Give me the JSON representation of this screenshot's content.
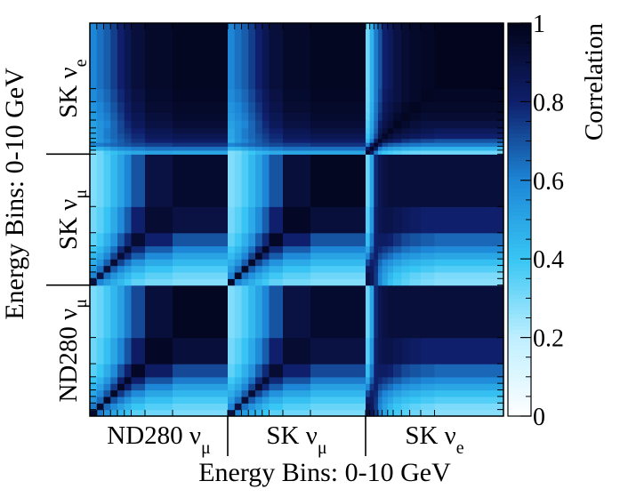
{
  "chart_data": {
    "type": "heatmap",
    "title": "",
    "xlabel": "Energy Bins: 0-10 GeV",
    "ylabel": "Energy Bins: 0-10 GeV",
    "zlabel": "Correlation",
    "zlim": [
      0,
      1
    ],
    "z_ticks": [
      "0",
      "0.2",
      "0.4",
      "0.6",
      "0.8",
      "1"
    ],
    "colorscale": [
      "#ffffff",
      "#bfefff",
      "#38c6f4",
      "#1d86d6",
      "#0f1f6b",
      "#02041a"
    ],
    "x_groups": [
      {
        "base": "ND280 ν",
        "sub": "μ"
      },
      {
        "base": "SK ν",
        "sub": "μ"
      },
      {
        "base": "SK ν",
        "sub": "e"
      }
    ],
    "y_groups": [
      {
        "base": "ND280 ν",
        "sub": "μ"
      },
      {
        "base": "SK ν",
        "sub": "μ"
      },
      {
        "base": "SK ν",
        "sub": "e"
      }
    ],
    "x_edges": [
      0.0,
      0.5,
      1.0,
      1.5,
      2.0,
      2.5,
      3.0,
      4.0,
      6.0,
      10.0,
      10.5,
      11.0,
      11.5,
      12.0,
      12.5,
      13.0,
      14.0,
      16.0,
      20.0,
      20.3,
      20.6,
      20.9,
      21.2,
      21.6,
      22.0,
      22.6,
      23.2,
      24.0,
      25.0,
      30.0
    ],
    "y_edges": [
      0.0,
      0.5,
      1.0,
      1.5,
      2.0,
      2.5,
      3.0,
      4.0,
      6.0,
      10.0,
      10.5,
      11.0,
      11.5,
      12.0,
      12.5,
      13.0,
      14.0,
      16.0,
      20.0,
      20.3,
      20.6,
      20.9,
      21.2,
      21.6,
      22.0,
      22.6,
      23.2,
      24.0,
      25.0,
      30.0
    ],
    "z": [
      [
        0.95,
        0.62,
        0.55,
        0.5,
        0.45,
        0.4,
        0.35,
        0.32,
        0.3,
        0.9,
        0.6,
        0.53,
        0.48,
        0.44,
        0.4,
        0.35,
        0.32,
        0.3,
        0.9,
        0.85,
        0.75,
        0.6,
        0.5,
        0.42,
        0.38,
        0.35,
        0.32,
        0.3,
        0.28
      ],
      [
        0.62,
        0.95,
        0.65,
        0.58,
        0.52,
        0.46,
        0.4,
        0.36,
        0.33,
        0.6,
        0.9,
        0.64,
        0.56,
        0.5,
        0.45,
        0.4,
        0.36,
        0.33,
        0.88,
        0.85,
        0.75,
        0.6,
        0.52,
        0.45,
        0.4,
        0.37,
        0.34,
        0.32,
        0.3
      ],
      [
        0.55,
        0.65,
        0.96,
        0.7,
        0.62,
        0.55,
        0.48,
        0.42,
        0.38,
        0.53,
        0.64,
        0.92,
        0.68,
        0.6,
        0.53,
        0.47,
        0.42,
        0.38,
        0.82,
        0.83,
        0.76,
        0.62,
        0.55,
        0.5,
        0.45,
        0.42,
        0.4,
        0.38,
        0.36
      ],
      [
        0.5,
        0.58,
        0.7,
        0.96,
        0.75,
        0.66,
        0.58,
        0.5,
        0.45,
        0.48,
        0.56,
        0.68,
        0.93,
        0.73,
        0.64,
        0.56,
        0.5,
        0.45,
        0.72,
        0.8,
        0.78,
        0.66,
        0.6,
        0.56,
        0.52,
        0.48,
        0.46,
        0.44,
        0.42
      ],
      [
        0.45,
        0.52,
        0.62,
        0.75,
        0.97,
        0.8,
        0.7,
        0.6,
        0.52,
        0.44,
        0.5,
        0.6,
        0.73,
        0.93,
        0.78,
        0.68,
        0.6,
        0.52,
        0.6,
        0.75,
        0.8,
        0.72,
        0.68,
        0.64,
        0.6,
        0.56,
        0.54,
        0.52,
        0.5
      ],
      [
        0.4,
        0.46,
        0.55,
        0.66,
        0.8,
        0.97,
        0.8,
        0.7,
        0.62,
        0.39,
        0.45,
        0.53,
        0.64,
        0.78,
        0.94,
        0.78,
        0.7,
        0.62,
        0.5,
        0.68,
        0.8,
        0.78,
        0.75,
        0.72,
        0.68,
        0.64,
        0.62,
        0.6,
        0.58
      ],
      [
        0.35,
        0.4,
        0.48,
        0.58,
        0.7,
        0.8,
        0.97,
        0.82,
        0.72,
        0.34,
        0.39,
        0.47,
        0.56,
        0.68,
        0.78,
        0.94,
        0.8,
        0.72,
        0.42,
        0.62,
        0.8,
        0.82,
        0.82,
        0.8,
        0.76,
        0.72,
        0.7,
        0.68,
        0.66
      ],
      [
        0.32,
        0.36,
        0.42,
        0.5,
        0.6,
        0.7,
        0.82,
        0.97,
        0.92,
        0.31,
        0.35,
        0.41,
        0.49,
        0.58,
        0.68,
        0.8,
        0.94,
        0.9,
        0.36,
        0.55,
        0.8,
        0.86,
        0.88,
        0.88,
        0.86,
        0.84,
        0.82,
        0.8,
        0.8
      ],
      [
        0.3,
        0.33,
        0.38,
        0.45,
        0.52,
        0.62,
        0.72,
        0.92,
        0.98,
        0.29,
        0.32,
        0.37,
        0.44,
        0.51,
        0.6,
        0.7,
        0.9,
        0.95,
        0.33,
        0.5,
        0.78,
        0.86,
        0.9,
        0.92,
        0.92,
        0.92,
        0.92,
        0.92,
        0.92
      ],
      [
        0.9,
        0.6,
        0.53,
        0.48,
        0.44,
        0.39,
        0.34,
        0.31,
        0.29,
        0.96,
        0.6,
        0.53,
        0.48,
        0.43,
        0.39,
        0.34,
        0.31,
        0.29,
        0.9,
        0.85,
        0.75,
        0.6,
        0.5,
        0.42,
        0.38,
        0.35,
        0.32,
        0.3,
        0.28
      ],
      [
        0.6,
        0.9,
        0.64,
        0.56,
        0.5,
        0.45,
        0.39,
        0.35,
        0.32,
        0.6,
        0.96,
        0.64,
        0.56,
        0.5,
        0.45,
        0.39,
        0.35,
        0.32,
        0.88,
        0.85,
        0.75,
        0.6,
        0.52,
        0.45,
        0.4,
        0.37,
        0.34,
        0.32,
        0.3
      ],
      [
        0.53,
        0.64,
        0.92,
        0.68,
        0.6,
        0.53,
        0.47,
        0.41,
        0.37,
        0.53,
        0.64,
        0.96,
        0.68,
        0.6,
        0.53,
        0.47,
        0.41,
        0.37,
        0.82,
        0.83,
        0.76,
        0.62,
        0.55,
        0.5,
        0.45,
        0.42,
        0.4,
        0.38,
        0.36
      ],
      [
        0.48,
        0.56,
        0.68,
        0.93,
        0.73,
        0.64,
        0.56,
        0.49,
        0.44,
        0.48,
        0.56,
        0.68,
        0.96,
        0.73,
        0.64,
        0.56,
        0.49,
        0.44,
        0.72,
        0.8,
        0.78,
        0.66,
        0.6,
        0.56,
        0.52,
        0.48,
        0.46,
        0.44,
        0.42
      ],
      [
        0.44,
        0.5,
        0.6,
        0.73,
        0.93,
        0.78,
        0.68,
        0.58,
        0.51,
        0.43,
        0.5,
        0.6,
        0.73,
        0.97,
        0.78,
        0.68,
        0.58,
        0.51,
        0.6,
        0.75,
        0.8,
        0.72,
        0.68,
        0.64,
        0.6,
        0.56,
        0.54,
        0.52,
        0.5
      ],
      [
        0.39,
        0.45,
        0.53,
        0.64,
        0.78,
        0.94,
        0.78,
        0.68,
        0.6,
        0.39,
        0.45,
        0.53,
        0.64,
        0.78,
        0.97,
        0.78,
        0.68,
        0.6,
        0.5,
        0.68,
        0.8,
        0.78,
        0.75,
        0.72,
        0.68,
        0.64,
        0.62,
        0.6,
        0.58
      ],
      [
        0.34,
        0.39,
        0.47,
        0.56,
        0.68,
        0.78,
        0.94,
        0.8,
        0.7,
        0.34,
        0.39,
        0.47,
        0.56,
        0.68,
        0.78,
        0.97,
        0.8,
        0.7,
        0.42,
        0.62,
        0.8,
        0.82,
        0.82,
        0.8,
        0.76,
        0.72,
        0.7,
        0.68,
        0.66
      ],
      [
        0.31,
        0.35,
        0.41,
        0.49,
        0.58,
        0.68,
        0.8,
        0.94,
        0.9,
        0.31,
        0.35,
        0.41,
        0.49,
        0.58,
        0.68,
        0.8,
        0.97,
        0.92,
        0.36,
        0.55,
        0.8,
        0.86,
        0.88,
        0.88,
        0.86,
        0.84,
        0.82,
        0.8,
        0.8
      ],
      [
        0.29,
        0.32,
        0.37,
        0.44,
        0.51,
        0.6,
        0.7,
        0.9,
        0.95,
        0.29,
        0.32,
        0.37,
        0.44,
        0.51,
        0.6,
        0.7,
        0.92,
        0.98,
        0.33,
        0.5,
        0.78,
        0.86,
        0.9,
        0.92,
        0.92,
        0.92,
        0.92,
        0.92,
        0.92
      ],
      [
        0.3,
        0.32,
        0.38,
        0.42,
        0.46,
        0.48,
        0.5,
        0.52,
        0.5,
        0.29,
        0.31,
        0.36,
        0.4,
        0.45,
        0.47,
        0.49,
        0.5,
        0.5,
        0.97,
        0.82,
        0.62,
        0.45,
        0.4,
        0.38,
        0.36,
        0.34,
        0.33,
        0.32,
        0.32
      ],
      [
        0.45,
        0.46,
        0.5,
        0.55,
        0.58,
        0.6,
        0.62,
        0.64,
        0.64,
        0.44,
        0.46,
        0.5,
        0.54,
        0.57,
        0.6,
        0.62,
        0.64,
        0.64,
        0.82,
        0.97,
        0.82,
        0.62,
        0.55,
        0.52,
        0.5,
        0.48,
        0.47,
        0.46,
        0.46
      ],
      [
        0.6,
        0.62,
        0.64,
        0.66,
        0.68,
        0.7,
        0.72,
        0.74,
        0.76,
        0.6,
        0.62,
        0.64,
        0.66,
        0.68,
        0.7,
        0.72,
        0.74,
        0.76,
        0.62,
        0.82,
        0.97,
        0.82,
        0.72,
        0.68,
        0.66,
        0.64,
        0.63,
        0.62,
        0.62
      ],
      [
        0.48,
        0.55,
        0.6,
        0.64,
        0.68,
        0.72,
        0.76,
        0.8,
        0.82,
        0.48,
        0.55,
        0.6,
        0.64,
        0.68,
        0.72,
        0.76,
        0.8,
        0.82,
        0.45,
        0.62,
        0.82,
        0.97,
        0.88,
        0.84,
        0.8,
        0.76,
        0.74,
        0.72,
        0.7
      ],
      [
        0.5,
        0.56,
        0.62,
        0.66,
        0.7,
        0.74,
        0.78,
        0.84,
        0.86,
        0.5,
        0.56,
        0.62,
        0.66,
        0.7,
        0.74,
        0.78,
        0.84,
        0.86,
        0.4,
        0.55,
        0.72,
        0.88,
        0.97,
        0.92,
        0.88,
        0.86,
        0.84,
        0.82,
        0.8
      ],
      [
        0.5,
        0.56,
        0.62,
        0.66,
        0.72,
        0.76,
        0.8,
        0.86,
        0.9,
        0.5,
        0.56,
        0.62,
        0.66,
        0.72,
        0.76,
        0.8,
        0.86,
        0.9,
        0.38,
        0.52,
        0.68,
        0.84,
        0.92,
        0.98,
        0.93,
        0.9,
        0.88,
        0.86,
        0.84
      ],
      [
        0.52,
        0.56,
        0.6,
        0.66,
        0.72,
        0.78,
        0.84,
        0.9,
        0.93,
        0.52,
        0.56,
        0.6,
        0.66,
        0.72,
        0.78,
        0.84,
        0.9,
        0.93,
        0.36,
        0.5,
        0.66,
        0.8,
        0.88,
        0.93,
        0.98,
        0.95,
        0.92,
        0.9,
        0.9
      ],
      [
        0.54,
        0.58,
        0.62,
        0.68,
        0.74,
        0.8,
        0.86,
        0.92,
        0.95,
        0.54,
        0.58,
        0.62,
        0.68,
        0.74,
        0.8,
        0.86,
        0.92,
        0.95,
        0.34,
        0.48,
        0.64,
        0.76,
        0.86,
        0.9,
        0.95,
        0.98,
        0.96,
        0.94,
        0.94
      ],
      [
        0.56,
        0.6,
        0.64,
        0.7,
        0.76,
        0.82,
        0.88,
        0.94,
        0.96,
        0.56,
        0.6,
        0.64,
        0.7,
        0.76,
        0.82,
        0.88,
        0.94,
        0.96,
        0.33,
        0.47,
        0.63,
        0.74,
        0.84,
        0.88,
        0.92,
        0.96,
        0.98,
        0.96,
        0.96
      ],
      [
        0.58,
        0.62,
        0.66,
        0.72,
        0.78,
        0.84,
        0.9,
        0.95,
        0.97,
        0.58,
        0.62,
        0.66,
        0.72,
        0.78,
        0.84,
        0.9,
        0.95,
        0.97,
        0.32,
        0.46,
        0.62,
        0.72,
        0.82,
        0.86,
        0.9,
        0.94,
        0.96,
        0.98,
        0.97
      ],
      [
        0.6,
        0.64,
        0.68,
        0.74,
        0.8,
        0.86,
        0.92,
        0.96,
        0.98,
        0.6,
        0.64,
        0.68,
        0.74,
        0.8,
        0.86,
        0.92,
        0.96,
        0.98,
        0.32,
        0.46,
        0.62,
        0.7,
        0.8,
        0.84,
        0.9,
        0.94,
        0.96,
        0.97,
        0.99
      ]
    ]
  }
}
